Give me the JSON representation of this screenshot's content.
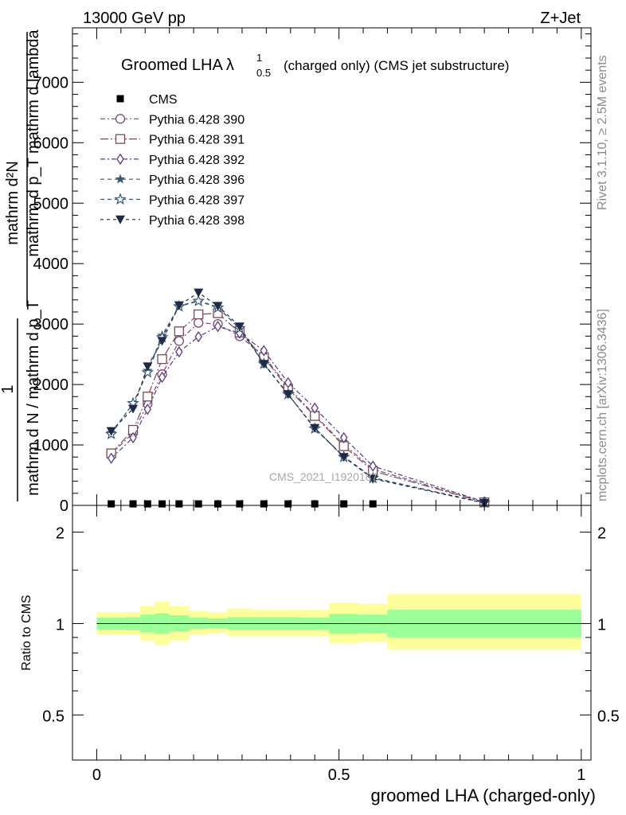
{
  "header": {
    "left": "13000 GeV pp",
    "right": "Z+Jet"
  },
  "side_labels": {
    "rivet": "Rivet 3.1.10, ≥ 2.5M events",
    "mcplots": "mcplots.cern.ch [arXiv:1306.3436]"
  },
  "chart_data": [
    {
      "type": "line",
      "title": {
        "main": "Groomed LHA",
        "lambda": "λ",
        "sup": "1",
        "sub": "0.5",
        "tail": "(charged only) (CMS jet substructure)"
      },
      "ylabel_top": "mathrm d²N",
      "ylabel_top2": "mathrm d p_T mathrm d lambda",
      "ylabel_one": "1",
      "ylabel_bottom": "mathrm d N / mathrm d p_T",
      "ylabel_bottom_sub": "T",
      "xlim": [
        -0.05,
        1.02
      ],
      "ylim": [
        0,
        7900
      ],
      "yticks": [
        {
          "v": 1000,
          "label": "1000"
        },
        {
          "v": 2000,
          "label": "2000"
        },
        {
          "v": 3000,
          "label": "3000"
        },
        {
          "v": 4000,
          "label": "4000"
        },
        {
          "v": 5000,
          "label": "5000"
        },
        {
          "v": 6000,
          "label": "6000"
        },
        {
          "v": 7000,
          "label": "7000"
        },
        {
          "v": 0,
          "label": "0"
        }
      ],
      "watermark": "CMS_2021_I1920187",
      "legend": {
        "position": "top-left"
      },
      "series": [
        {
          "name": "CMS",
          "marker": "square-filled",
          "color": "#000000",
          "x": [
            0.03,
            0.075,
            0.105,
            0.135,
            0.17,
            0.21,
            0.25,
            0.295,
            0.345,
            0.395,
            0.45,
            0.51,
            0.57
          ],
          "y": [
            25,
            25,
            25,
            25,
            25,
            25,
            25,
            25,
            25,
            25,
            25,
            25,
            25
          ]
        },
        {
          "name": "Pythia 6.428 390",
          "marker": "circle-open",
          "color": "#7a4a7a",
          "dash": "6,3,2,3",
          "x": [
            0.03,
            0.075,
            0.105,
            0.135,
            0.17,
            0.21,
            0.25,
            0.295,
            0.345,
            0.395,
            0.45,
            0.51,
            0.57,
            0.8
          ],
          "y": [
            850,
            1200,
            1680,
            2170,
            2720,
            3020,
            3000,
            2800,
            2470,
            1960,
            1490,
            1010,
            600,
            55
          ]
        },
        {
          "name": "Pythia 6.428 391",
          "marker": "square-open",
          "color": "#7a4a55",
          "dash": "10,3,2,3",
          "x": [
            0.03,
            0.075,
            0.105,
            0.135,
            0.17,
            0.21,
            0.25,
            0.295,
            0.345,
            0.395,
            0.45,
            0.51,
            0.57,
            0.8
          ],
          "y": [
            860,
            1250,
            1800,
            2420,
            2880,
            3160,
            3180,
            2860,
            2450,
            1930,
            1480,
            980,
            570,
            50
          ]
        },
        {
          "name": "Pythia 6.428 392",
          "marker": "diamond-open",
          "color": "#5a3a88",
          "dash": "6,3,2,3",
          "x": [
            0.03,
            0.075,
            0.105,
            0.135,
            0.17,
            0.21,
            0.25,
            0.295,
            0.345,
            0.395,
            0.45,
            0.51,
            0.57,
            0.8
          ],
          "y": [
            780,
            1120,
            1590,
            2120,
            2540,
            2790,
            2960,
            2850,
            2560,
            2030,
            1610,
            1120,
            650,
            60
          ]
        },
        {
          "name": "Pythia 6.428 396",
          "marker": "star-small",
          "color": "#3a5a78",
          "dash": "5,4",
          "x": [
            0.03,
            0.075,
            0.105,
            0.135,
            0.17,
            0.21,
            0.25,
            0.295,
            0.345,
            0.395,
            0.45,
            0.51,
            0.57,
            0.8
          ],
          "y": [
            1200,
            1680,
            2230,
            2810,
            3300,
            3390,
            3280,
            2920,
            2350,
            1830,
            1280,
            810,
            460,
            45
          ]
        },
        {
          "name": "Pythia 6.428 397",
          "marker": "star-open",
          "color": "#3a5a78",
          "dash": "5,4",
          "x": [
            0.03,
            0.075,
            0.105,
            0.135,
            0.17,
            0.21,
            0.25,
            0.295,
            0.345,
            0.395,
            0.45,
            0.51,
            0.57,
            0.8
          ],
          "y": [
            1180,
            1690,
            2200,
            2780,
            3290,
            3380,
            3270,
            2930,
            2340,
            1840,
            1270,
            800,
            450,
            45
          ]
        },
        {
          "name": "Pythia 6.428 398",
          "marker": "triangle-down-filled",
          "color": "#1e2a48",
          "dash": "4,4",
          "x": [
            0.03,
            0.075,
            0.105,
            0.135,
            0.17,
            0.21,
            0.25,
            0.295,
            0.345,
            0.395,
            0.45,
            0.51,
            0.57,
            0.8
          ],
          "y": [
            1230,
            1600,
            2300,
            2720,
            3310,
            3520,
            3300,
            2960,
            2340,
            1840,
            1280,
            800,
            440,
            40
          ]
        }
      ]
    },
    {
      "type": "area",
      "ylabel": "Ratio to CMS",
      "xlabel": "groomed LHA (charged-only)",
      "xlim": [
        -0.05,
        1.02
      ],
      "ylim": [
        0.355,
        2.45
      ],
      "yscale": "log",
      "yticks": [
        {
          "v": 0.5,
          "label": "0.5"
        },
        {
          "v": 1,
          "label": "1"
        },
        {
          "v": 2,
          "label": "2"
        }
      ],
      "xticks": [
        {
          "v": 0,
          "label": "0"
        },
        {
          "v": 0.5,
          "label": "0.5"
        },
        {
          "v": 1,
          "label": "1"
        }
      ],
      "band_colors": {
        "inner": "#99ff99",
        "outer": "#ffff99"
      },
      "bands": [
        {
          "x0": 0.0,
          "x1": 0.06,
          "inner": [
            0.955,
            1.045
          ],
          "outer": [
            0.92,
            1.09
          ]
        },
        {
          "x0": 0.06,
          "x1": 0.09,
          "inner": [
            0.95,
            1.05
          ],
          "outer": [
            0.92,
            1.09
          ]
        },
        {
          "x0": 0.09,
          "x1": 0.12,
          "inner": [
            0.935,
            1.07
          ],
          "outer": [
            0.88,
            1.14
          ]
        },
        {
          "x0": 0.12,
          "x1": 0.15,
          "inner": [
            0.925,
            1.08
          ],
          "outer": [
            0.85,
            1.18
          ]
        },
        {
          "x0": 0.15,
          "x1": 0.19,
          "inner": [
            0.94,
            1.065
          ],
          "outer": [
            0.88,
            1.14
          ]
        },
        {
          "x0": 0.19,
          "x1": 0.23,
          "inner": [
            0.96,
            1.045
          ],
          "outer": [
            0.92,
            1.1
          ]
        },
        {
          "x0": 0.23,
          "x1": 0.27,
          "inner": [
            0.965,
            1.04
          ],
          "outer": [
            0.93,
            1.09
          ]
        },
        {
          "x0": 0.27,
          "x1": 0.32,
          "inner": [
            0.955,
            1.05
          ],
          "outer": [
            0.91,
            1.12
          ]
        },
        {
          "x0": 0.32,
          "x1": 0.37,
          "inner": [
            0.955,
            1.05
          ],
          "outer": [
            0.91,
            1.11
          ]
        },
        {
          "x0": 0.37,
          "x1": 0.42,
          "inner": [
            0.955,
            1.05
          ],
          "outer": [
            0.91,
            1.11
          ]
        },
        {
          "x0": 0.42,
          "x1": 0.48,
          "inner": [
            0.955,
            1.045
          ],
          "outer": [
            0.91,
            1.11
          ]
        },
        {
          "x0": 0.48,
          "x1": 0.54,
          "inner": [
            0.925,
            1.075
          ],
          "outer": [
            0.86,
            1.17
          ]
        },
        {
          "x0": 0.54,
          "x1": 0.6,
          "inner": [
            0.93,
            1.07
          ],
          "outer": [
            0.87,
            1.16
          ]
        },
        {
          "x0": 0.6,
          "x1": 1.0,
          "inner": [
            0.9,
            1.11
          ],
          "outer": [
            0.82,
            1.25
          ]
        }
      ],
      "series": [
        {
          "name": "",
          "x": [
            0.0,
            1.0
          ],
          "y": [
            1.0,
            1.0
          ],
          "color": "#000000"
        }
      ]
    }
  ]
}
